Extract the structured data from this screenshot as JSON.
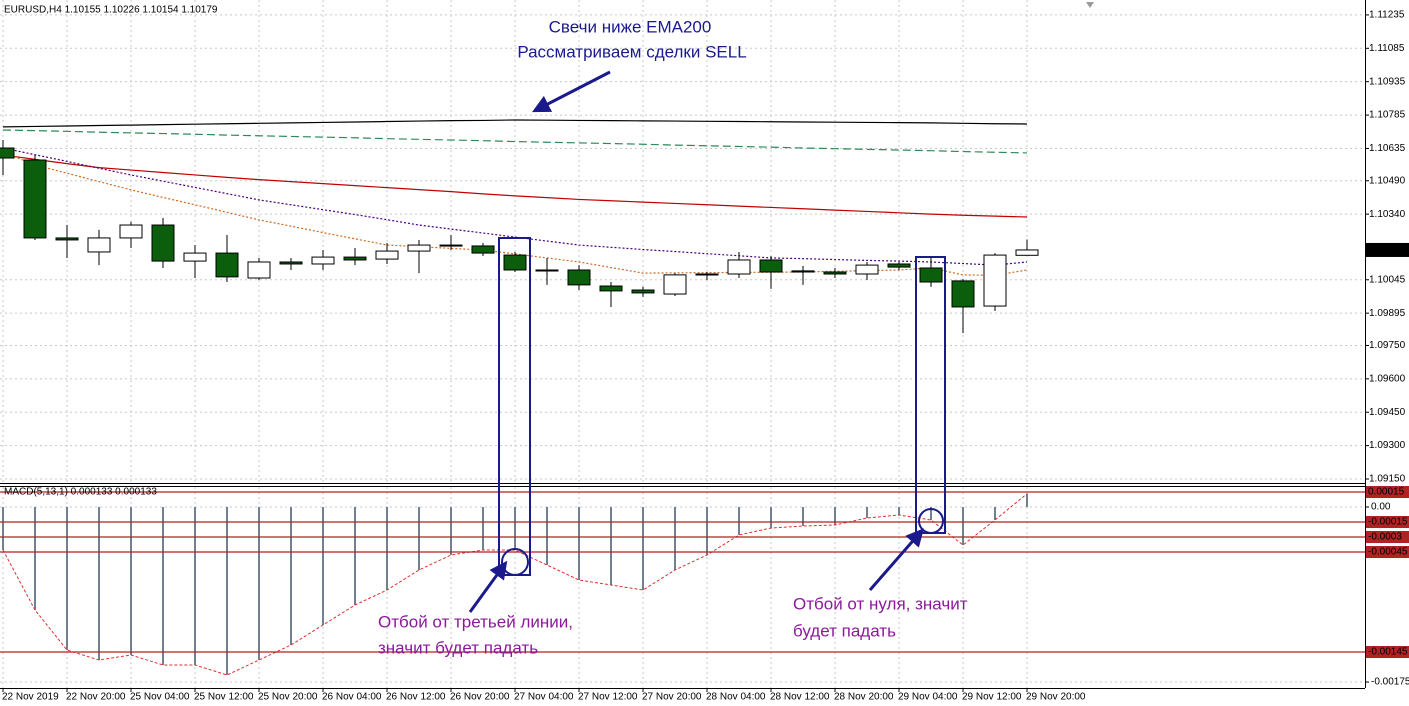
{
  "chart_data": [
    {
      "type": "candlestick",
      "header": "EURUSD,H4  1.10155 1.10226 1.10154 1.10179",
      "categories": [
        "22 Nov 2019",
        null,
        "22 Nov 20:00",
        null,
        "25 Nov 04:00",
        null,
        "25 Nov 12:00",
        null,
        "25 Nov 20:00",
        null,
        "26 Nov 04:00",
        null,
        "26 Nov 12:00",
        null,
        "26 Nov 20:00",
        null,
        "27 Nov 04:00",
        null,
        "27 Nov 12:00",
        null,
        "27 Nov 20:00",
        null,
        "28 Nov 04:00",
        null,
        "28 Nov 12:00",
        null,
        "28 Nov 20:00",
        null,
        "29 Nov 04:00",
        null,
        "29 Nov 12:00",
        null,
        "29 Nov 20:00"
      ],
      "open": [
        1.10637,
        1.10583,
        1.10233,
        1.1017,
        1.10233,
        1.10291,
        1.10129,
        1.10165,
        1.10053,
        1.10125,
        1.10116,
        1.10147,
        1.10138,
        1.10174,
        1.10201,
        1.10197,
        1.10156,
        1.10089,
        1.10089,
        1.10017,
        1.09999,
        1.09981,
        1.10067,
        1.10071,
        1.10134,
        1.10085,
        1.1008,
        1.10071,
        1.10116,
        1.10098,
        1.1004,
        1.09927,
        1.10155
      ],
      "high": [
        1.10673,
        1.10606,
        1.10291,
        1.10269,
        1.10305,
        1.10323,
        1.10201,
        1.10246,
        1.10143,
        1.10143,
        1.10179,
        1.10188,
        1.1021,
        1.10224,
        1.10246,
        1.1021,
        1.1017,
        1.10143,
        1.10111,
        1.10035,
        1.10013,
        1.10075,
        1.1008,
        1.1017,
        1.10152,
        1.10107,
        1.10098,
        1.10125,
        1.10125,
        1.10143,
        1.10049,
        1.10165,
        1.10226
      ],
      "low": [
        1.10516,
        1.10224,
        1.10143,
        1.10111,
        1.10188,
        1.10098,
        1.10053,
        1.10035,
        1.10044,
        1.10089,
        1.10089,
        1.10111,
        1.10116,
        1.10075,
        1.10179,
        1.10152,
        1.1008,
        1.10022,
        1.09999,
        1.09923,
        1.09968,
        1.09972,
        1.10044,
        1.10053,
        1.10004,
        1.10022,
        1.10053,
        1.10044,
        1.10089,
        1.10013,
        1.09806,
        1.09905,
        1.10154
      ],
      "close": [
        1.10592,
        1.10233,
        1.10224,
        1.10233,
        1.10291,
        1.10129,
        1.10165,
        1.10058,
        1.10125,
        1.10116,
        1.10147,
        1.10134,
        1.10174,
        1.10201,
        1.10197,
        1.10165,
        1.10089,
        1.10089,
        1.10022,
        1.09995,
        1.09986,
        1.10067,
        1.10071,
        1.10134,
        1.1008,
        1.1008,
        1.10071,
        1.10111,
        1.10102,
        1.10035,
        1.09923,
        1.10156,
        1.10179
      ],
      "up_color": "#ffffff",
      "down_color": "#0b5e0b",
      "series": [
        {
          "color": "#000000",
          "style": "solid",
          "values": [
            1.10732,
            1.10734,
            1.10736,
            1.10738,
            1.1074,
            1.10742,
            1.10744,
            1.10746,
            1.10748,
            1.1075,
            1.10752,
            1.10754,
            1.10756,
            1.10758,
            1.1076,
            1.10761,
            1.10763,
            1.10762,
            1.10761,
            1.1076,
            1.10759,
            1.10758,
            1.10757,
            1.10756,
            1.10755,
            1.10754,
            1.10753,
            1.10752,
            1.10751,
            1.1075,
            1.10748,
            1.10746,
            1.10745
          ]
        },
        {
          "color": "#2e8b57",
          "style": "dashed",
          "values": [
            1.10718,
            1.10715,
            1.10712,
            1.10708,
            1.10705,
            1.10702,
            1.10699,
            1.10695,
            1.10692,
            1.10689,
            1.10686,
            1.10683,
            1.10679,
            1.10676,
            1.10673,
            1.1067,
            1.10666,
            1.10663,
            1.1066,
            1.10657,
            1.10654,
            1.1065,
            1.10647,
            1.10644,
            1.10641,
            1.10637,
            1.10634,
            1.10631,
            1.10628,
            1.10625,
            1.10621,
            1.10618,
            1.10615
          ]
        },
        {
          "color": "#c00000",
          "style": "solid",
          "values": [
            1.10606,
            1.10586,
            1.10567,
            1.10549,
            1.10538,
            1.10527,
            1.10516,
            1.10505,
            1.10495,
            1.10486,
            1.10477,
            1.10468,
            1.10459,
            1.1045,
            1.10441,
            1.10431,
            1.10422,
            1.10414,
            1.10406,
            1.104,
            1.10394,
            1.10388,
            1.10382,
            1.10376,
            1.1037,
            1.10364,
            1.10358,
            1.10352,
            1.10346,
            1.1034,
            1.10335,
            1.10331,
            1.10327
          ]
        },
        {
          "color": "#4b0082",
          "style": "dotted",
          "values": [
            1.10637,
            1.10607,
            1.10577,
            1.10546,
            1.10516,
            1.10488,
            1.1046,
            1.10432,
            1.10404,
            1.10382,
            1.1036,
            1.10338,
            1.10315,
            1.10291,
            1.10273,
            1.10255,
            1.10237,
            1.10219,
            1.10201,
            1.10191,
            1.10181,
            1.10172,
            1.10162,
            1.10153,
            1.10143,
            1.1014,
            1.10136,
            1.10132,
            1.10129,
            1.10125,
            1.10118,
            1.10111,
            1.10125
          ]
        },
        {
          "color": "#d2691e",
          "style": "dotted",
          "values": [
            1.10619,
            1.10561,
            1.10524,
            1.10486,
            1.10449,
            1.10415,
            1.10382,
            1.10348,
            1.10314,
            1.10286,
            1.10257,
            1.10229,
            1.10201,
            1.10194,
            1.10186,
            1.10179,
            1.10161,
            1.10143,
            1.10125,
            1.101,
            1.10075,
            1.10076,
            1.10077,
            1.10078,
            1.10079,
            1.1008,
            1.10083,
            1.10086,
            1.10089,
            1.10098,
            1.10067,
            1.10065,
            1.10089
          ]
        }
      ],
      "ylim": [
        1.09132,
        1.11302
      ],
      "yticks": [
        1.11235,
        1.11085,
        1.10935,
        1.10785,
        1.10635,
        {
          "value": 1.1049,
          "label": "1.10490"
        },
        {
          "value": 1.1034,
          "label": "1.10340"
        },
        1.10045,
        1.09895,
        {
          "value": 1.0975,
          "label": "1.09750"
        },
        {
          "value": 1.096,
          "label": "1.09600"
        },
        {
          "value": 1.0945,
          "label": "1.09450"
        },
        {
          "value": 1.093,
          "label": "1.09300"
        },
        {
          "value": 1.0915,
          "label": "1.09150"
        }
      ],
      "grid": true,
      "annotations": [
        "Свечи ниже EMA200",
        "Рассматриваем сделки SELL",
        "Отбой от третьей линии,",
        "значит будет падать",
        "Отбой от нуля, значит",
        "будет падать"
      ]
    },
    {
      "type": "bar",
      "header": "MACD(5,13,1) 0.000133 0.000133",
      "values": [
        -0.00043,
        -0.00103,
        -0.00143,
        -0.00153,
        -0.00148,
        -0.00158,
        -0.00158,
        -0.00168,
        -0.00153,
        -0.00138,
        -0.00118,
        -0.00098,
        -0.00083,
        -0.00063,
        -0.00048,
        -0.00043,
        -0.00043,
        -0.00058,
        -0.00073,
        -0.00078,
        -0.00083,
        -0.00063,
        -0.00048,
        -0.00028,
        -0.00021,
        -0.00019,
        -0.00018,
        -0.00011,
        -8e-05,
        -0.00013,
        -0.00038,
        -0.00013,
        0.000133
      ],
      "color": "#708090",
      "line_color": "#e03030",
      "ylim": [
        -0.00181,
        0.0002
      ],
      "yticks": [
        {
          "value": 0,
          "label": "0.00"
        },
        -0.00175
      ],
      "levels": [
        0.00015,
        -0.00015,
        -0.0003,
        -0.00045,
        -0.00145
      ],
      "level_color": "#b22222",
      "grid": true
    }
  ]
}
